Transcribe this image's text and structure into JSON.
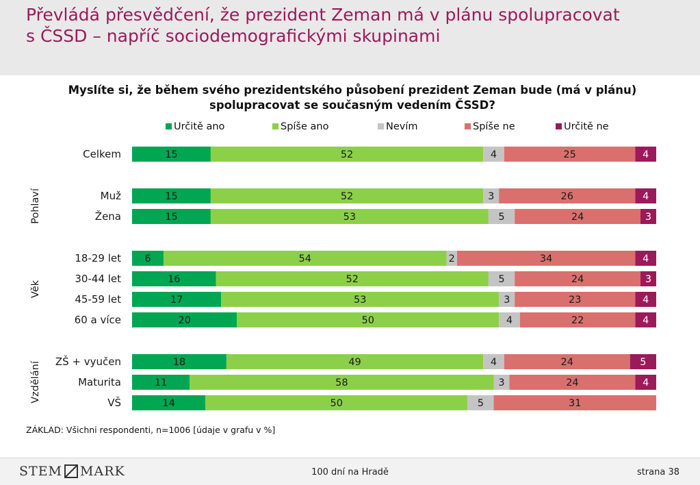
{
  "title": {
    "line1": "Převládá přesvědčení, že prezident Zeman má v plánu spolupracovat",
    "line2": "s ČSSD – napříč sociodemografickými skupinami"
  },
  "question": {
    "line1": "Myslíte si, že během svého prezidentského působení prezident Zeman bude (má v plánu)",
    "line2": "spolupracovat se současným vedením ČSSD?"
  },
  "chart_data": {
    "type": "bar",
    "stacked": true,
    "orientation": "horizontal",
    "xlim": [
      0,
      100
    ],
    "legend_position": "top",
    "series": [
      {
        "name": "Určitě ano",
        "color": "#00a651"
      },
      {
        "name": "Spíše ano",
        "color": "#8cd04a"
      },
      {
        "name": "Nevím",
        "color": "#c4c4c4"
      },
      {
        "name": "Spíše ne",
        "color": "#d9706e"
      },
      {
        "name": "Určitě ne",
        "color": "#9b1a5a"
      }
    ],
    "groups": [
      {
        "label": "",
        "rows": [
          {
            "label": "Celkem",
            "values": [
              15,
              52,
              4,
              25,
              4
            ]
          }
        ]
      },
      {
        "label": "Pohlaví",
        "rows": [
          {
            "label": "Muž",
            "values": [
              15,
              52,
              3,
              26,
              4
            ]
          },
          {
            "label": "Žena",
            "values": [
              15,
              53,
              5,
              24,
              3
            ]
          }
        ]
      },
      {
        "label": "Věk",
        "rows": [
          {
            "label": "18-29 let",
            "values": [
              6,
              54,
              2,
              34,
              4
            ]
          },
          {
            "label": "30-44 let",
            "values": [
              16,
              52,
              5,
              24,
              3
            ]
          },
          {
            "label": "45-59 let",
            "values": [
              17,
              53,
              3,
              23,
              4
            ]
          },
          {
            "label": "60 a více",
            "values": [
              20,
              50,
              4,
              22,
              4
            ]
          }
        ]
      },
      {
        "label": "Vzdělání",
        "rows": [
          {
            "label": "ZŠ + vyučen",
            "values": [
              18,
              49,
              4,
              24,
              5
            ]
          },
          {
            "label": "Maturita",
            "values": [
              11,
              58,
              3,
              24,
              4
            ]
          },
          {
            "label": "VŠ",
            "values": [
              14,
              50,
              5,
              31,
              0
            ]
          }
        ]
      }
    ]
  },
  "base_note": "ZÁKLAD: Všichni respondenti, n=1006 [údaje v grafu v %]",
  "footer": {
    "logo_left": "STEM",
    "logo_right": "MARK",
    "center": "100 dní na Hradě",
    "page": "strana 38"
  }
}
